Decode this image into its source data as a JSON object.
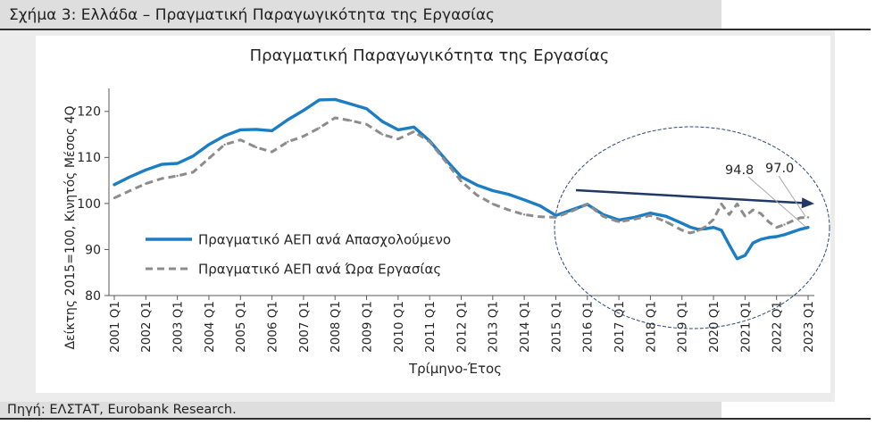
{
  "figure": {
    "caption": "Σχήμα 3: Ελλάδα – Πραγματική Παραγωγικότητα της Εργασίας",
    "source": "Πηγή: ΕΛΣΤΑΤ, Eurobank Research."
  },
  "colors": {
    "trend_arrow": "#1f3864",
    "highlight_ellipse": "#2b4778",
    "label_leader": "#a6a6a6",
    "axis": "#595959"
  },
  "chart_data": {
    "type": "line",
    "title": "Πραγματική Παραγωγικότητα της Εργασίας",
    "xlabel": "Τρίμηνο-Έτος",
    "ylabel": "Δείκτης 2015=100, Κινητός Μέσος 4Q",
    "ylim": [
      80,
      125
    ],
    "yticks": [
      80,
      90,
      100,
      110,
      120
    ],
    "xticks": [
      "2001 Q1",
      "2002 Q1",
      "2003 Q1",
      "2004 Q1",
      "2005 Q1",
      "2006 Q1",
      "2007 Q1",
      "2008 Q1",
      "2009 Q1",
      "2010 Q1",
      "2011 Q1",
      "2012 Q1",
      "2013 Q1",
      "2014 Q1",
      "2015 Q1",
      "2016 Q1",
      "2017 Q1",
      "2018 Q1",
      "2019 Q1",
      "2020 Q1",
      "2021 Q1",
      "2022 Q1",
      "2023 Q1"
    ],
    "grid": false,
    "legend": "inside-left",
    "x": [
      2001,
      2001.5,
      2002,
      2002.5,
      2003,
      2003.5,
      2004,
      2004.5,
      2005,
      2005.5,
      2006,
      2006.5,
      2007,
      2007.5,
      2008,
      2008.5,
      2009,
      2009.5,
      2010,
      2010.5,
      2011,
      2011.5,
      2012,
      2012.5,
      2013,
      2013.5,
      2014,
      2014.5,
      2015,
      2015.5,
      2016,
      2016.5,
      2017,
      2017.5,
      2018,
      2018.5,
      2019,
      2019.25,
      2019.5,
      2019.75,
      2020,
      2020.25,
      2020.5,
      2020.75,
      2021,
      2021.25,
      2021.5,
      2021.75,
      2022,
      2022.25,
      2022.5,
      2022.75,
      2023
    ],
    "series": [
      {
        "name": "Πραγματικό ΑΕΠ ανά Απασχολούμενο",
        "color": "#1b7dc3",
        "values": [
          104.1,
          105.8,
          107.3,
          108.5,
          108.7,
          110.3,
          112.8,
          114.7,
          116.0,
          116.1,
          115.8,
          118.2,
          120.2,
          122.5,
          122.6,
          121.6,
          120.6,
          117.8,
          116.0,
          116.6,
          113.6,
          109.6,
          105.8,
          104.0,
          102.8,
          102.0,
          100.8,
          99.5,
          97.4,
          98.6,
          99.8,
          97.6,
          96.4,
          97.0,
          97.9,
          97.2,
          95.7,
          94.9,
          94.4,
          94.5,
          94.8,
          94.2,
          91.0,
          88.0,
          88.7,
          91.4,
          92.2,
          92.6,
          92.8,
          93.2,
          93.8,
          94.4,
          94.8
        ]
      },
      {
        "name": "Πραγματικό ΑΕΠ ανά Ώρα Εργασίας",
        "color": "#8c8c8c",
        "values": [
          101.2,
          102.8,
          104.3,
          105.4,
          106.0,
          106.8,
          109.8,
          112.8,
          113.8,
          112.2,
          111.2,
          113.4,
          114.6,
          116.4,
          118.6,
          118.0,
          117.2,
          115.0,
          114.0,
          115.6,
          113.4,
          109.2,
          104.8,
          101.8,
          99.9,
          98.6,
          97.6,
          97.1,
          97.0,
          98.3,
          99.9,
          97.2,
          96.0,
          96.6,
          97.4,
          96.0,
          94.2,
          93.6,
          94.0,
          95.0,
          96.5,
          99.9,
          97.6,
          99.9,
          97.2,
          98.6,
          97.8,
          96.0,
          94.8,
          95.4,
          96.2,
          96.9,
          97.0
        ]
      }
    ],
    "annotations": [
      {
        "text": "94.8",
        "x": 2023,
        "y": 94.8
      },
      {
        "text": "97.0",
        "x": 2023,
        "y": 97.0
      }
    ]
  }
}
